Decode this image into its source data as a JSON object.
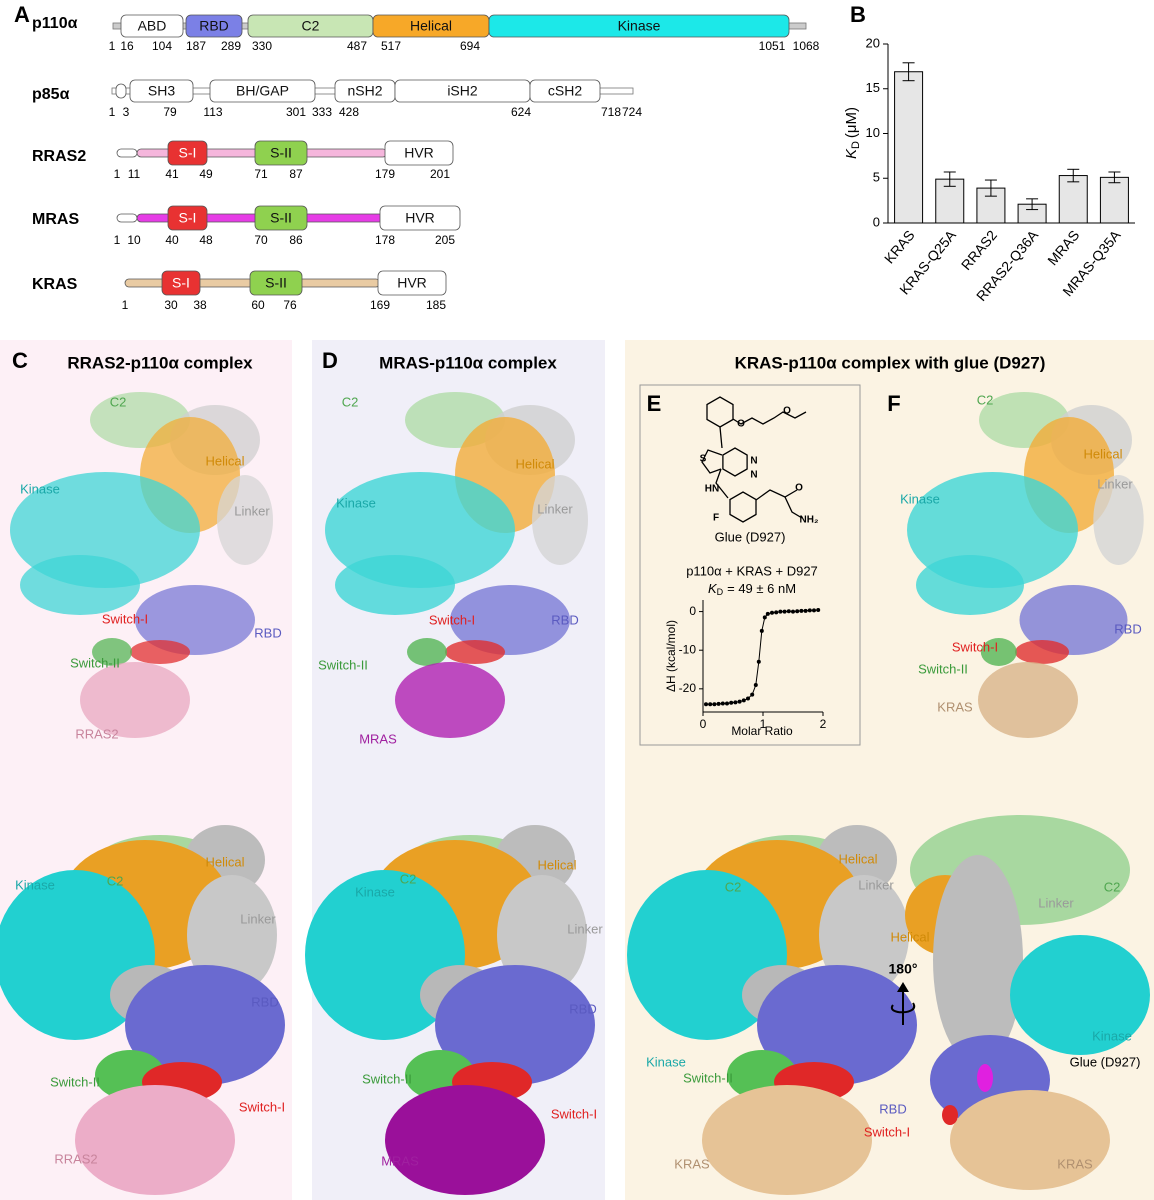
{
  "panel_a": {
    "label": "A",
    "proteins": [
      {
        "name": "p110α",
        "domains": [
          {
            "label": "ABD",
            "color": "#ffffff"
          },
          {
            "label": "RBD",
            "color": "#7b80e6"
          },
          {
            "label": "C2",
            "color": "#c8e6b4"
          },
          {
            "label": "Helical",
            "color": "#f7a828"
          },
          {
            "label": "Kinase",
            "color": "#1ce8e8"
          }
        ],
        "positions": [
          1,
          16,
          104,
          187,
          289,
          330,
          487,
          517,
          694,
          1051,
          1068
        ]
      },
      {
        "name": "p85α",
        "domains": [
          {
            "color": "#ffffff"
          },
          {
            "label": "SH3",
            "color": "#ffffff"
          },
          {
            "label": "BH/GAP",
            "color": "#ffffff"
          },
          {
            "label": "nSH2",
            "color": "#ffffff"
          },
          {
            "label": "iSH2",
            "color": "#ffffff"
          },
          {
            "label": "cSH2",
            "color": "#ffffff"
          }
        ],
        "positions": [
          1,
          3,
          79,
          113,
          301,
          333,
          428,
          624,
          718,
          724
        ]
      },
      {
        "name": "RRAS2",
        "domains": [
          {
            "color": "#ffffff"
          },
          {
            "color": "#f5b6dc"
          },
          {
            "label": "S-I",
            "color": "#e83232"
          },
          {
            "label": "S-II",
            "color": "#8fd14f"
          },
          {
            "label": "HVR",
            "color": "#ffffff"
          }
        ],
        "positions": [
          1,
          11,
          41,
          49,
          71,
          87,
          179,
          201
        ]
      },
      {
        "name": "MRAS",
        "domains": [
          {
            "color": "#ffffff"
          },
          {
            "color": "#e63ce6"
          },
          {
            "label": "S-I",
            "color": "#e83232"
          },
          {
            "label": "S-II",
            "color": "#8fd14f"
          },
          {
            "label": "HVR",
            "color": "#ffffff"
          }
        ],
        "positions": [
          1,
          10,
          40,
          48,
          70,
          86,
          178,
          205
        ]
      },
      {
        "name": "KRAS",
        "domains": [
          {
            "color": "#e9cba3"
          },
          {
            "label": "S-I",
            "color": "#e83232"
          },
          {
            "label": "S-II",
            "color": "#8fd14f"
          },
          {
            "label": "HVR",
            "color": "#ffffff"
          }
        ],
        "positions": [
          1,
          30,
          38,
          60,
          76,
          169,
          185
        ]
      }
    ]
  },
  "chart_data": [
    {
      "type": "bar",
      "panel": "B",
      "y_label": {
        "symbol": "K",
        "subscript": "D",
        "unit": "(μM)"
      },
      "categories": [
        "KRAS",
        "KRAS-Q25A",
        "RRAS2",
        "RRAS2-Q36A",
        "MRAS",
        "MRAS-Q35A"
      ],
      "values": [
        16.9,
        4.9,
        3.9,
        2.1,
        5.3,
        5.1
      ],
      "errors": [
        1.0,
        0.8,
        0.9,
        0.6,
        0.7,
        0.6
      ],
      "color": "#e6e6e6",
      "ylim": [
        0,
        20
      ],
      "yticks": [
        0,
        5,
        10,
        15,
        20
      ],
      "grid": false
    },
    {
      "type": "line",
      "panel": "E",
      "title": "p110α + KRAS + D927",
      "annotation": {
        "symbol": "K",
        "subscript": "D",
        "text": "= 49  ± 6 nM"
      },
      "x_label": "Molar Ratio",
      "y_label": "ΔH (kcal/mol)",
      "x": [
        0.05,
        0.12,
        0.19,
        0.26,
        0.33,
        0.4,
        0.47,
        0.54,
        0.61,
        0.68,
        0.75,
        0.82,
        0.88,
        0.93,
        0.98,
        1.03,
        1.08,
        1.15,
        1.22,
        1.29,
        1.36,
        1.43,
        1.5,
        1.57,
        1.64,
        1.71,
        1.78,
        1.85,
        1.92
      ],
      "values": [
        -24,
        -24,
        -24,
        -23.9,
        -23.8,
        -23.8,
        -23.6,
        -23.5,
        -23.3,
        -23,
        -22.5,
        -21.5,
        -19,
        -13,
        -5,
        -1.5,
        -0.6,
        -0.3,
        -0.2,
        0,
        0,
        0.1,
        0,
        0.1,
        0.2,
        0.2,
        0.3,
        0.3,
        0.4
      ],
      "color": "#000000",
      "xlim": [
        0,
        2
      ],
      "xticks": [
        0,
        1,
        2
      ],
      "ylim": [
        -26,
        3
      ],
      "yticks": [
        -20,
        -10,
        0
      ]
    }
  ],
  "panels": {
    "c": {
      "label": "C",
      "title": "RRAS2-p110α complex",
      "cartoon": [
        {
          "text": "C2",
          "color": "#4fa64f"
        },
        {
          "text": "Helical",
          "color": "#d08a08"
        },
        {
          "text": "Kinase",
          "color": "#1aa8a8"
        },
        {
          "text": "Linker",
          "color": "#9a9a9a"
        },
        {
          "text": "RBD",
          "color": "#5a5ac0"
        },
        {
          "text": "Switch-I",
          "color": "#e02020"
        },
        {
          "text": "Switch-II",
          "color": "#3a9a3a"
        },
        {
          "text": "RRAS2",
          "color": "#c8849c"
        }
      ],
      "surface": [
        {
          "text": "C2",
          "color": "#4fa64f"
        },
        {
          "text": "Helical",
          "color": "#d08a08"
        },
        {
          "text": "Kinase",
          "color": "#1aa8a8"
        },
        {
          "text": "Linker",
          "color": "#9a9a9a"
        },
        {
          "text": "RBD",
          "color": "#5a5ac0"
        },
        {
          "text": "Switch-II",
          "color": "#3a9a3a"
        },
        {
          "text": "Switch-I",
          "color": "#e02020"
        },
        {
          "text": "RRAS2",
          "color": "#c8849c"
        }
      ]
    },
    "d": {
      "label": "D",
      "title": "MRAS-p110α complex",
      "cartoon": [
        {
          "text": "C2",
          "color": "#4fa64f"
        },
        {
          "text": "Helical",
          "color": "#d08a08"
        },
        {
          "text": "Kinase",
          "color": "#1aa8a8"
        },
        {
          "text": "Linker",
          "color": "#9a9a9a"
        },
        {
          "text": "RBD",
          "color": "#5a5ac0"
        },
        {
          "text": "Switch-I",
          "color": "#e02020"
        },
        {
          "text": "Switch-II",
          "color": "#3a9a3a"
        },
        {
          "text": "MRAS",
          "color": "#a020a0"
        }
      ],
      "surface": [
        {
          "text": "C2",
          "color": "#4fa64f"
        },
        {
          "text": "Helical",
          "color": "#d08a08"
        },
        {
          "text": "Kinase",
          "color": "#1aa8a8"
        },
        {
          "text": "Linker",
          "color": "#9a9a9a"
        },
        {
          "text": "RBD",
          "color": "#5a5ac0"
        },
        {
          "text": "Switch-II",
          "color": "#3a9a3a"
        },
        {
          "text": "Switch-I",
          "color": "#e02020"
        },
        {
          "text": "MRAS",
          "color": "#a020a0"
        }
      ]
    },
    "ef": {
      "title": "KRAS-p110α complex with glue (D927)",
      "e_label": "E",
      "f_label": "F",
      "glue_atoms": [
        "O",
        "O",
        "S",
        "N",
        "N",
        "HN",
        "F",
        "O",
        "NH₂"
      ],
      "glue_name": "Glue (D927)",
      "rotation": "180°",
      "cartoon": [
        {
          "text": "C2",
          "color": "#4fa64f"
        },
        {
          "text": "Helical",
          "color": "#d08a08"
        },
        {
          "text": "Kinase",
          "color": "#1aa8a8"
        },
        {
          "text": "Linker",
          "color": "#9a9a9a"
        },
        {
          "text": "RBD",
          "color": "#5a5ac0"
        },
        {
          "text": "Switch-I",
          "color": "#e02020"
        },
        {
          "text": "Switch-II",
          "color": "#3a9a3a"
        },
        {
          "text": "KRAS",
          "color": "#b09070"
        }
      ],
      "surface_front": [
        {
          "text": "C2",
          "color": "#4fa64f"
        },
        {
          "text": "Helical",
          "color": "#d08a08"
        },
        {
          "text": "Linker",
          "color": "#9a9a9a"
        },
        {
          "text": "Kinase",
          "color": "#1aa8a8"
        },
        {
          "text": "Switch-II",
          "color": "#3a9a3a"
        },
        {
          "text": "RBD",
          "color": "#5a5ac0"
        },
        {
          "text": "Switch-I",
          "color": "#e02020"
        },
        {
          "text": "KRAS",
          "color": "#b09070"
        }
      ],
      "surface_back": [
        {
          "text": "C2",
          "color": "#4fa64f"
        },
        {
          "text": "Linker",
          "color": "#9a9a9a"
        },
        {
          "text": "Helical",
          "color": "#d08a08"
        },
        {
          "text": "Kinase",
          "color": "#1aa8a8"
        },
        {
          "text": "Glue (D927)",
          "color": "#000000"
        },
        {
          "text": "KRAS",
          "color": "#b09070"
        }
      ]
    }
  }
}
